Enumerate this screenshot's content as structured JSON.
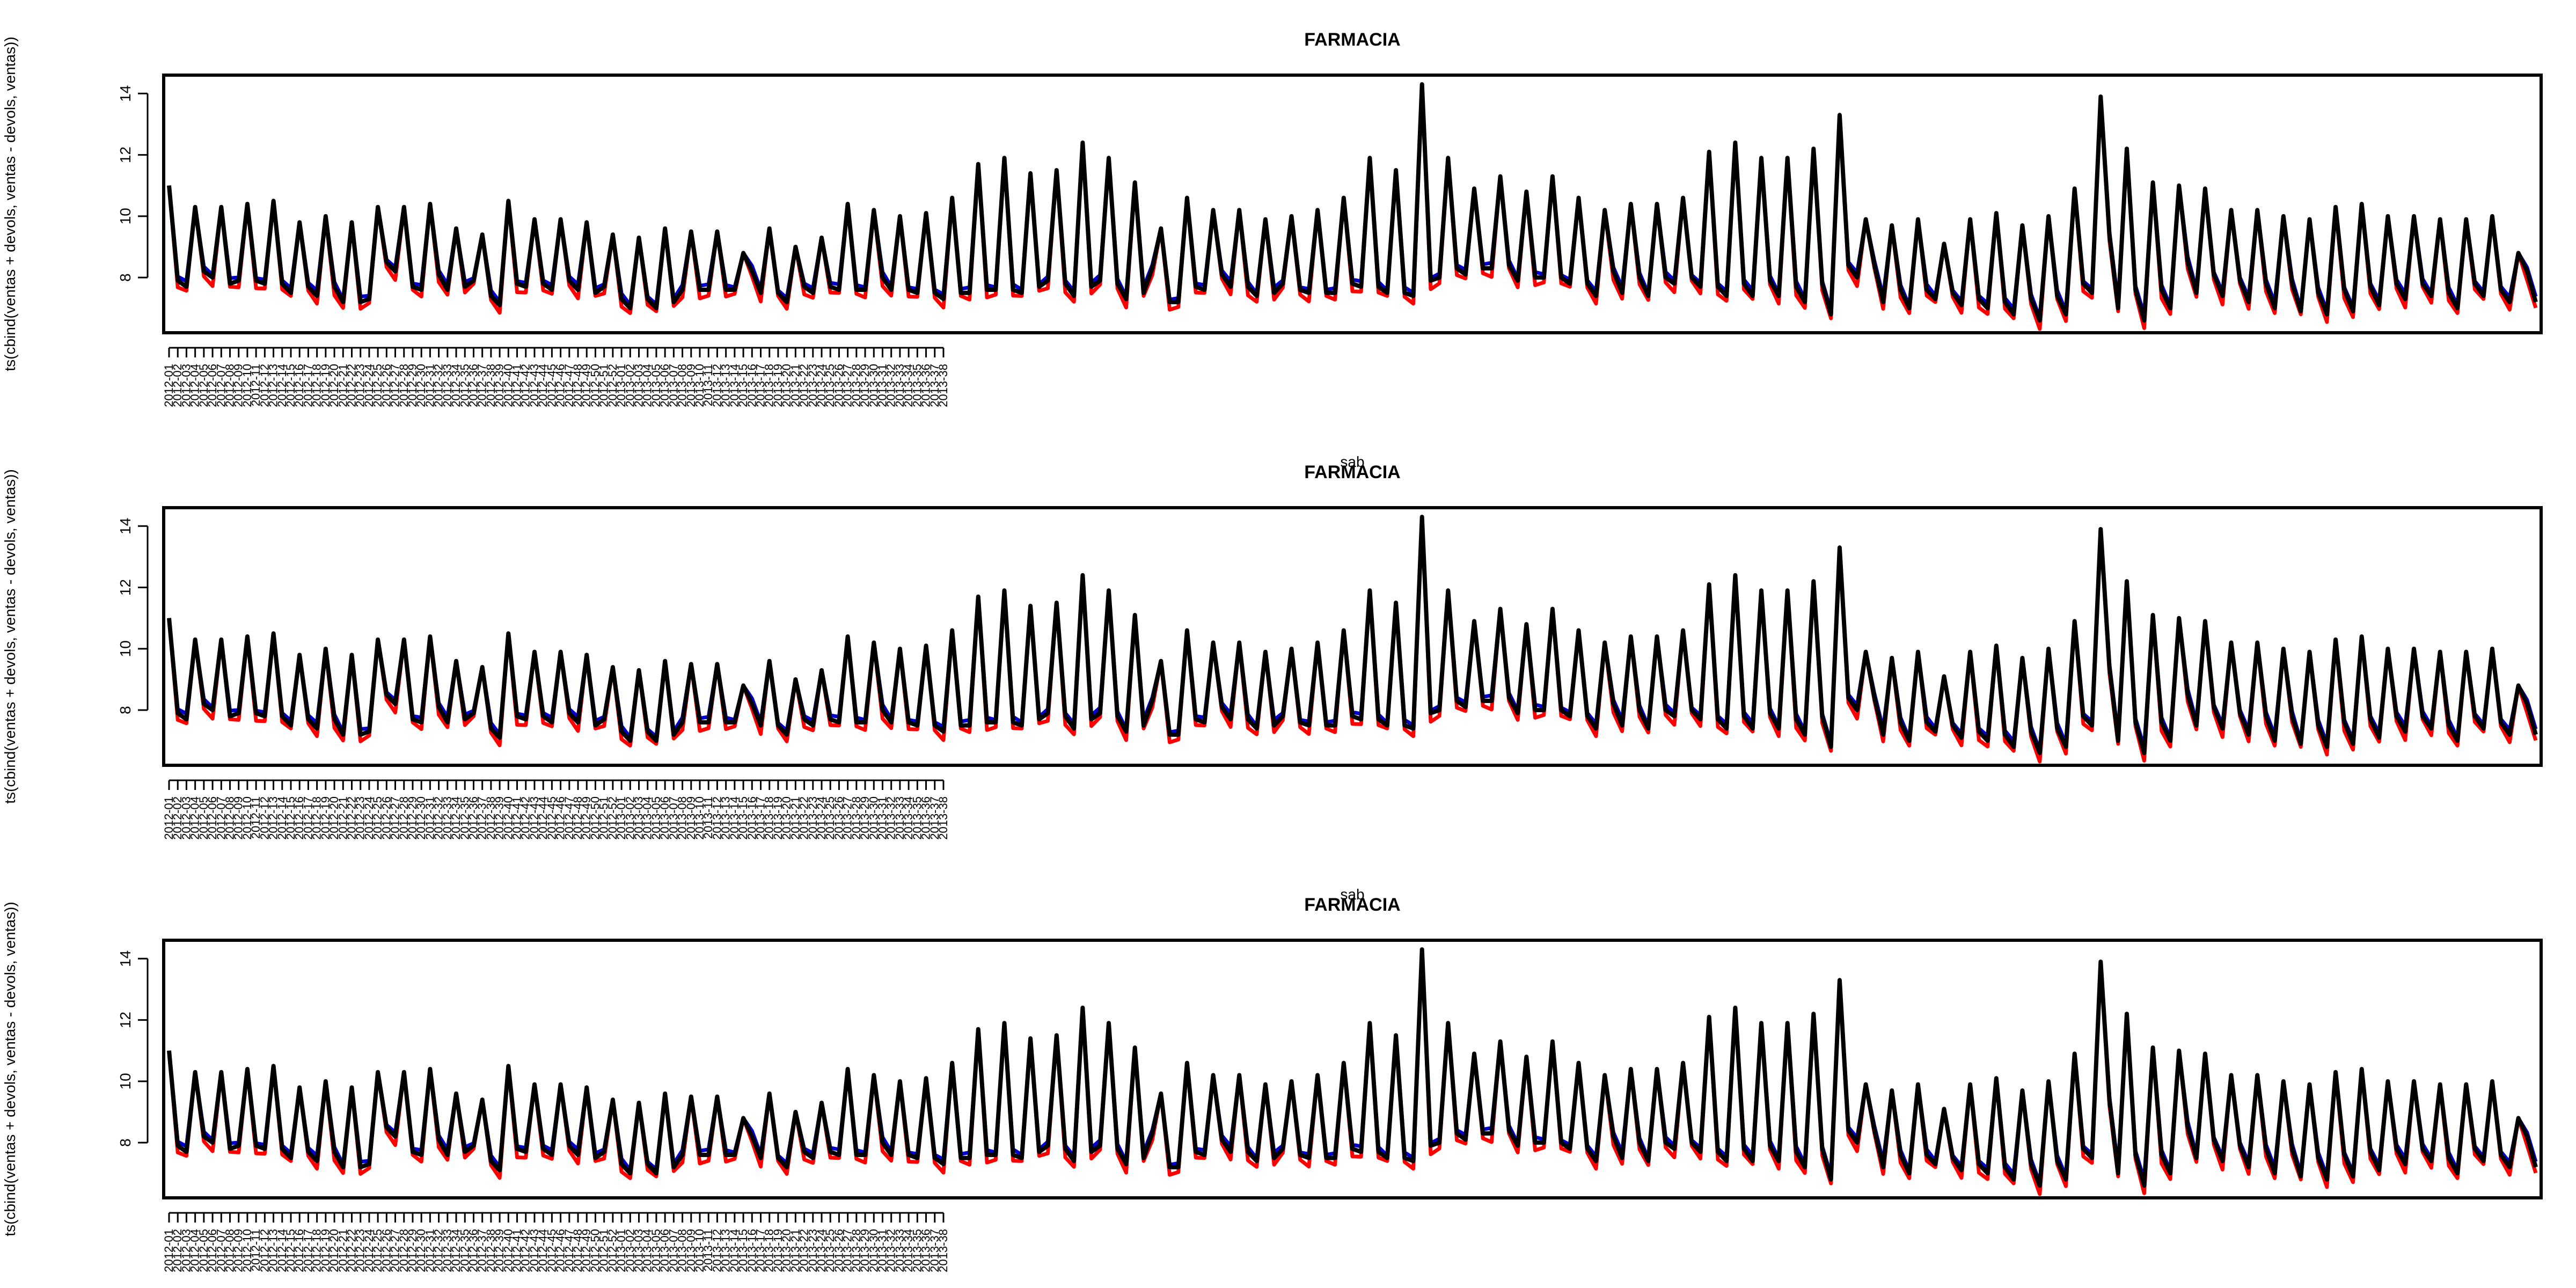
{
  "chart_data": [
    {
      "type": "line",
      "title": "FARMACIA",
      "xlabel": "sab",
      "ylabel": "ts(cbind(ventas + devols, ventas - devols, ventas))",
      "yticks": [
        "8",
        "10",
        "12",
        "14"
      ],
      "ylim": [
        6.2,
        14.6
      ],
      "x_start": "2012-01",
      "x_end": "2013-38",
      "colors": [
        "#0000cc",
        "#ff0000",
        "#000000"
      ],
      "grid": false
    },
    {
      "type": "line",
      "title": "FARMACIA",
      "xlabel": "sab",
      "ylabel": "ts(cbind(ventas + devols, ventas - devols, ventas))",
      "yticks": [
        "8",
        "10",
        "12",
        "14"
      ],
      "ylim": [
        6.2,
        14.6
      ],
      "x_start": "2012-01",
      "x_end": "2013-38",
      "colors": [
        "#0000cc",
        "#ff0000",
        "#000000"
      ],
      "grid": false
    },
    {
      "type": "line",
      "title": "FARMACIA",
      "xlabel": "sab",
      "ylabel": "ts(cbind(ventas + devols, ventas - devols, ventas))",
      "yticks": [
        "8",
        "10",
        "12",
        "14"
      ],
      "ylim": [
        6.2,
        14.6
      ],
      "x_start": "2012-01",
      "x_end": "2013-38",
      "colors": [
        "#0000cc",
        "#ff0000",
        "#000000"
      ],
      "grid": false
    }
  ],
  "series_values": {
    "ventas": [
      11.0,
      7.9,
      7.7,
      10.3,
      8.2,
      8.0,
      10.3,
      7.8,
      7.9,
      10.4,
      7.9,
      7.8,
      10.5,
      7.8,
      7.5,
      9.8,
      7.7,
      7.4,
      10.0,
      7.7,
      7.2,
      9.8,
      7.2,
      7.3,
      10.3,
      8.5,
      8.2,
      10.3,
      7.7,
      7.6,
      10.4,
      8.1,
      7.6,
      9.6,
      7.7,
      7.9,
      9.4,
      7.4,
      7.1,
      10.5,
      7.8,
      7.7,
      9.9,
      7.8,
      7.6,
      9.9,
      7.9,
      7.6,
      9.8,
      7.5,
      7.7,
      9.4,
      7.3,
      7.0,
      9.3,
      7.3,
      7.0,
      9.6,
      7.2,
      7.6,
      9.5,
      7.6,
      7.6,
      9.5,
      7.6,
      7.6,
      8.8,
      8.2,
      7.5,
      9.6,
      7.5,
      7.2,
      9.0,
      7.7,
      7.5,
      9.3,
      7.7,
      7.6,
      10.4,
      7.6,
      7.6,
      10.2,
      8.0,
      7.6,
      10.0,
      7.6,
      7.5,
      10.1,
      7.5,
      7.3,
      10.6,
      7.5,
      7.5,
      11.7,
      7.6,
      7.6,
      11.9,
      7.6,
      7.5,
      11.4,
      7.7,
      7.9,
      11.5,
      7.8,
      7.4,
      12.4,
      7.7,
      7.9,
      11.9,
      7.8,
      7.3,
      11.1,
      7.5,
      8.3,
      9.6,
      7.2,
      7.2,
      10.6,
      7.7,
      7.6,
      10.2,
      8.1,
      7.7,
      10.2,
      7.7,
      7.4,
      9.9,
      7.5,
      7.8,
      10.0,
      7.6,
      7.5,
      10.2,
      7.5,
      7.5,
      10.6,
      7.8,
      7.7,
      11.9,
      7.7,
      7.5,
      11.5,
      7.5,
      7.4,
      14.3,
      7.9,
      8.0,
      11.9,
      8.3,
      8.1,
      10.9,
      8.3,
      8.3,
      11.3,
      8.4,
      7.9,
      10.8,
      8.0,
      8.0,
      11.3,
      8.0,
      7.8,
      10.6,
      7.8,
      7.4,
      10.2,
      8.2,
      7.5,
      10.4,
      8.0,
      7.4,
      10.4,
      8.0,
      7.8,
      10.6,
      8.0,
      7.7,
      12.1,
      7.7,
      7.4,
      12.4,
      7.8,
      7.4,
      11.9,
      7.9,
      7.4,
      11.9,
      7.7,
      7.2,
      12.2,
      7.8,
      6.8,
      13.3,
      8.4,
      8.0,
      9.9,
      8.4,
      7.2,
      9.7,
      7.6,
      7.0,
      9.9,
      7.6,
      7.3,
      9.1,
      7.5,
      7.1,
      9.9,
      7.3,
      7.0,
      10.1,
      7.2,
      6.8,
      9.7,
      7.3,
      6.6,
      10.0,
      7.4,
      6.8,
      10.9,
      7.8,
      7.5,
      13.9,
      9.4,
      7.0,
      12.2,
      7.6,
      6.6,
      11.1,
      7.6,
      7.0,
      11.0,
      8.5,
      7.5,
      10.9,
      8.1,
      7.4,
      10.2,
      7.9,
      7.2,
      10.2,
      7.8,
      7.0,
      10.0,
      7.8,
      6.9,
      9.9,
      7.5,
      6.8,
      10.3,
      7.6,
      6.9,
      10.4,
      7.7,
      7.1,
      10.0,
      7.8,
      7.3,
      10.0,
      7.8,
      7.4,
      9.9,
      7.5,
      7.0,
      9.9,
      7.8,
      7.4,
      10.0,
      7.6,
      7.2,
      8.8,
      8.2,
      7.2
    ]
  }
}
